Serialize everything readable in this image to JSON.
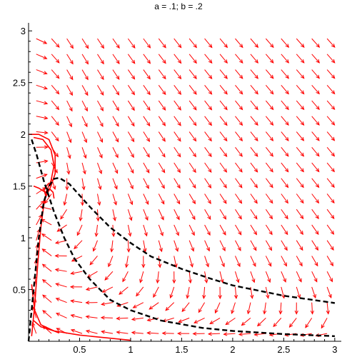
{
  "chart_data": {
    "type": "direction_field",
    "title": "a = .1;  b = .2",
    "xlabel": "",
    "ylabel": "",
    "xlim": [
      0,
      3.05
    ],
    "ylim": [
      0,
      3.05
    ],
    "x_ticks": [
      0.5,
      1,
      1.5,
      2,
      2.5,
      3
    ],
    "x_tick_labels": [
      "0.5",
      "1",
      "1.5",
      "2",
      "2.5",
      "3"
    ],
    "y_ticks": [
      0.5,
      1,
      1.5,
      2,
      2.5,
      3
    ],
    "y_tick_labels": [
      "0.5",
      "1",
      "1.5",
      "2",
      "2.5",
      "3"
    ],
    "grid": false,
    "parameters": {
      "a": 0.1,
      "b": 0.2
    },
    "arrow_color": "#ff0000",
    "solution_color": "#ff0000",
    "nullcline_color": "#000000",
    "red_solution_curves": [
      {
        "name": "",
        "points": [
          [
            0,
            2.0
          ],
          [
            0.1,
            2.0
          ],
          [
            0.2,
            1.95
          ],
          [
            0.26,
            1.8
          ],
          [
            0.26,
            1.62
          ],
          [
            0.22,
            1.5
          ],
          [
            0.17,
            1.4
          ],
          [
            0.15,
            1.47
          ],
          [
            0.2,
            1.53
          ]
        ]
      },
      {
        "name": "",
        "points": [
          [
            0.05,
            1.97
          ],
          [
            0.14,
            1.95
          ],
          [
            0.22,
            1.85
          ],
          [
            0.25,
            1.7
          ],
          [
            0.22,
            1.55
          ],
          [
            0.18,
            1.46
          ],
          [
            0.16,
            1.43
          ]
        ]
      },
      {
        "name": "",
        "points": [
          [
            0.03,
            0.05
          ],
          [
            0.06,
            0.35
          ],
          [
            0.09,
            0.75
          ],
          [
            0.12,
            1.1
          ],
          [
            0.15,
            1.32
          ],
          [
            0.18,
            1.44
          ],
          [
            0.21,
            1.47
          ],
          [
            0.24,
            1.44
          ],
          [
            0.25,
            1.38
          ]
        ]
      },
      {
        "name": "",
        "points": [
          [
            0.05,
            1.5
          ],
          [
            0.1,
            1.48
          ],
          [
            0.15,
            1.45
          ],
          [
            0.18,
            1.43
          ]
        ]
      },
      {
        "name": "",
        "points": [
          [
            0.03,
            0.55
          ],
          [
            0.06,
            0.3
          ],
          [
            0.12,
            0.16
          ],
          [
            0.25,
            0.1
          ],
          [
            0.5,
            0.06
          ],
          [
            0.8,
            0.03
          ],
          [
            1.0,
            0.01
          ]
        ]
      },
      {
        "name": "",
        "points": [
          [
            0.05,
            0.2
          ],
          [
            0.12,
            0.14
          ],
          [
            0.25,
            0.1
          ],
          [
            0.3,
            0.08
          ]
        ]
      }
    ],
    "black_dashed_curves": [
      {
        "name": "",
        "points": [
          [
            0.0,
            0.0
          ],
          [
            0.05,
            0.5
          ],
          [
            0.1,
            1.0
          ],
          [
            0.15,
            1.35
          ],
          [
            0.2,
            1.5
          ],
          [
            0.25,
            1.57
          ],
          [
            0.3,
            1.58
          ],
          [
            0.4,
            1.52
          ],
          [
            0.6,
            1.3
          ],
          [
            0.8,
            1.1
          ],
          [
            1.0,
            0.95
          ],
          [
            1.2,
            0.82
          ],
          [
            1.5,
            0.7
          ],
          [
            1.8,
            0.6
          ],
          [
            2.0,
            0.54
          ],
          [
            2.5,
            0.44
          ],
          [
            3.0,
            0.37
          ]
        ]
      },
      {
        "name": "",
        "points": [
          [
            0.03,
            1.95
          ],
          [
            0.08,
            1.8
          ],
          [
            0.15,
            1.55
          ],
          [
            0.25,
            1.25
          ],
          [
            0.35,
            1.0
          ],
          [
            0.45,
            0.8
          ],
          [
            0.6,
            0.6
          ],
          [
            0.8,
            0.4
          ],
          [
            1.0,
            0.3
          ],
          [
            1.3,
            0.2
          ],
          [
            1.7,
            0.13
          ],
          [
            2.0,
            0.1
          ],
          [
            2.5,
            0.07
          ],
          [
            3.0,
            0.05
          ]
        ]
      }
    ],
    "field_note_hidden": ""
  }
}
